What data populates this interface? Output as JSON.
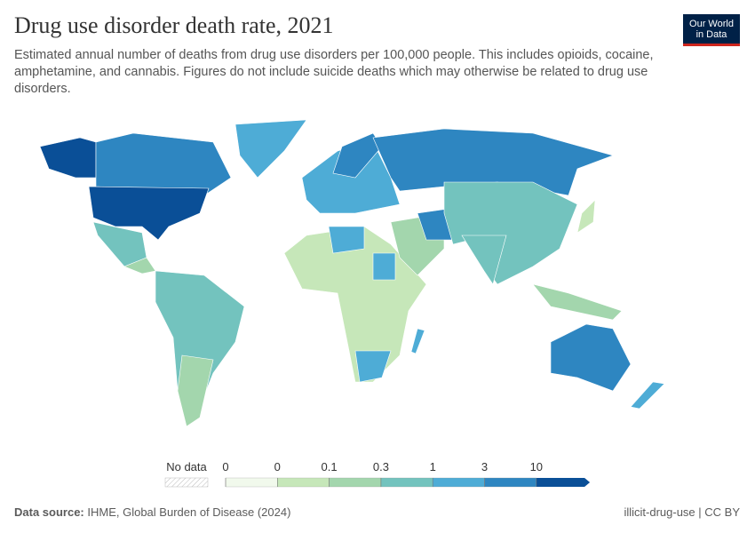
{
  "header": {
    "title": "Drug use disorder death rate, 2021",
    "subtitle": "Estimated annual number of deaths from drug use disorders per 100,000 people. This includes opioids, cocaine, amphetamine, and cannabis. Figures do not include suicide deaths which may otherwise be related to drug use disorders.",
    "logo": [
      "Our World",
      "in Data"
    ]
  },
  "legend": {
    "no_data": "No data",
    "ticks": [
      "0",
      "0",
      "0.1",
      "0.3",
      "1",
      "3",
      "10"
    ],
    "colors": [
      "#f1f9ec",
      "#c6e7b9",
      "#a3d6ad",
      "#73c3be",
      "#4eacd6",
      "#2e86c1",
      "#0a4f97"
    ]
  },
  "footer": {
    "source_label": "Data source:",
    "source": "IHME, Global Burden of Disease (2024)",
    "slug": "illicit-drug-use | CC BY"
  }
}
